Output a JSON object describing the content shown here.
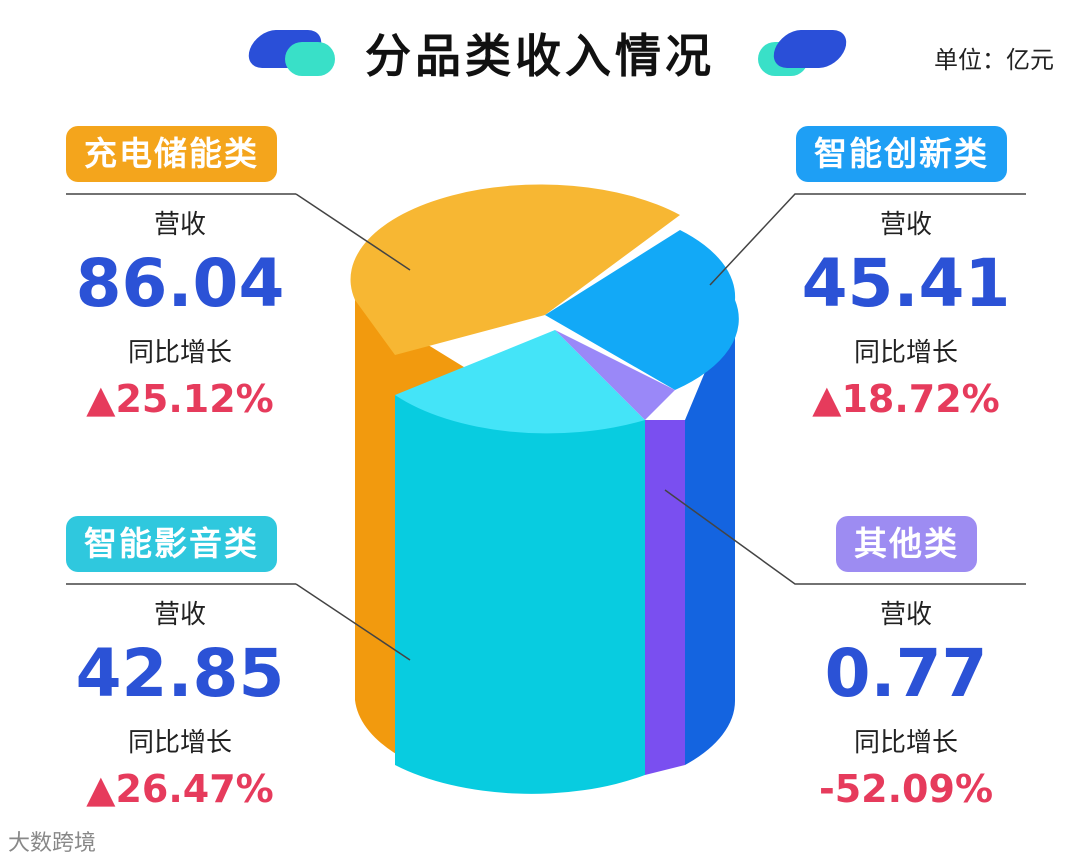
{
  "title": "分品类收入情况",
  "unit": "单位：亿元",
  "watermark": "大数跨境",
  "colors": {
    "storage": "#f4a51c",
    "smart_innov": "#1e9ff5",
    "audio_video": "#3ad6ea",
    "other": "#8b6bf0",
    "value_text": "#2b52d6",
    "growth_text": "#e63b5c"
  },
  "chart_data": {
    "type": "pie",
    "title": "分品类收入情况",
    "unit": "亿元",
    "categories": [
      "充电储能类",
      "智能创新类",
      "智能影音类",
      "其他类"
    ],
    "values": [
      86.04,
      45.41,
      42.85,
      0.77
    ],
    "growth": [
      "▲25.12%",
      "▲18.72%",
      "▲26.47%",
      "-52.09%"
    ],
    "legend": "none"
  },
  "blocks": [
    {
      "label": "充电储能类",
      "cap": "营收",
      "value": "86.04",
      "yoy": "同比增长",
      "pct": "▲25.12%"
    },
    {
      "label": "智能创新类",
      "cap": "营收",
      "value": "45.41",
      "yoy": "同比增长",
      "pct": "▲18.72%"
    },
    {
      "label": "智能影音类",
      "cap": "营收",
      "value": "42.85",
      "yoy": "同比增长",
      "pct": "▲26.47%"
    },
    {
      "label": "其他类",
      "cap": "营收",
      "value": "0.77",
      "yoy": "同比增长",
      "pct": "-52.09%"
    }
  ]
}
